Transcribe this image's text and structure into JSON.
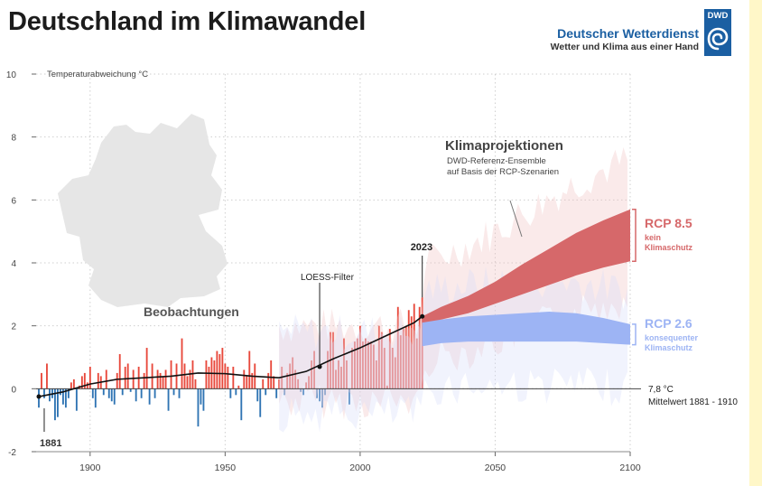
{
  "header": {
    "title": "Deutschland im Klimawandel",
    "brand_name": "Deutscher Wetterdienst",
    "brand_tagline": "Wetter und Klima aus einer Hand",
    "logo_text": "DWD"
  },
  "colors": {
    "warm": "#e8483b",
    "cold": "#2f74b3",
    "rcp85": "#d6686a",
    "rcp26": "#9db4f4",
    "accent_strip": "#fff7c8"
  },
  "chart_data": {
    "type": "bar",
    "ylabel": "Temperaturabweichung °C",
    "xlim": [
      1880,
      2100
    ],
    "ylim": [
      -2,
      10
    ],
    "xticks": [
      1900,
      1950,
      2000,
      2050,
      2100
    ],
    "yticks": [
      -2,
      0,
      2,
      4,
      6,
      8,
      10
    ],
    "grid": true,
    "observations": {
      "name": "Beobachtungen",
      "years": [
        1881,
        1882,
        1883,
        1884,
        1885,
        1886,
        1887,
        1888,
        1889,
        1890,
        1891,
        1892,
        1893,
        1894,
        1895,
        1896,
        1897,
        1898,
        1899,
        1900,
        1901,
        1902,
        1903,
        1904,
        1905,
        1906,
        1907,
        1908,
        1909,
        1910,
        1911,
        1912,
        1913,
        1914,
        1915,
        1916,
        1917,
        1918,
        1919,
        1920,
        1921,
        1922,
        1923,
        1924,
        1925,
        1926,
        1927,
        1928,
        1929,
        1930,
        1931,
        1932,
        1933,
        1934,
        1935,
        1936,
        1937,
        1938,
        1939,
        1940,
        1941,
        1942,
        1943,
        1944,
        1945,
        1946,
        1947,
        1948,
        1949,
        1950,
        1951,
        1952,
        1953,
        1954,
        1955,
        1956,
        1957,
        1958,
        1959,
        1960,
        1961,
        1962,
        1963,
        1964,
        1965,
        1966,
        1967,
        1968,
        1969,
        1970,
        1971,
        1972,
        1973,
        1974,
        1975,
        1976,
        1977,
        1978,
        1979,
        1980,
        1981,
        1982,
        1983,
        1984,
        1985,
        1986,
        1987,
        1988,
        1989,
        1990,
        1991,
        1992,
        1993,
        1994,
        1995,
        1996,
        1997,
        1998,
        1999,
        2000,
        2001,
        2002,
        2003,
        2004,
        2005,
        2006,
        2007,
        2008,
        2009,
        2010,
        2011,
        2012,
        2013,
        2014,
        2015,
        2016,
        2017,
        2018,
        2019,
        2020,
        2021,
        2022,
        2023
      ],
      "values": [
        -0.6,
        0.5,
        -0.3,
        0.8,
        -0.4,
        -0.3,
        -1.0,
        -0.9,
        -0.2,
        -0.5,
        -0.6,
        -0.3,
        0.2,
        0.3,
        -0.7,
        0.1,
        0.4,
        0.5,
        0.2,
        0.7,
        -0.3,
        -0.6,
        0.5,
        0.4,
        -0.2,
        0.6,
        -0.3,
        -0.4,
        -0.5,
        0.5,
        1.1,
        -0.2,
        0.7,
        0.8,
        -0.1,
        0.6,
        -0.4,
        0.7,
        -0.3,
        0.5,
        1.3,
        -0.5,
        0.8,
        -0.3,
        0.6,
        0.5,
        0.4,
        0.6,
        -0.7,
        0.9,
        -0.2,
        0.8,
        -0.3,
        1.6,
        0.8,
        0.4,
        0.6,
        0.9,
        0.3,
        -1.2,
        -0.5,
        -0.7,
        0.9,
        0.7,
        1.0,
        0.9,
        1.2,
        1.1,
        1.3,
        0.8,
        0.7,
        -0.3,
        0.7,
        -0.2,
        0.1,
        -1.0,
        0.6,
        0.4,
        1.2,
        0.5,
        0.8,
        -0.4,
        -0.9,
        0.3,
        -0.2,
        0.5,
        0.9,
        0.4,
        -0.3,
        0.3,
        0.7,
        -0.2,
        0.5,
        0.8,
        1.0,
        0.6,
        0.3,
        -0.1,
        -0.2,
        0.2,
        0.4,
        0.9,
        1.2,
        -0.3,
        -0.4,
        -0.6,
        -0.2,
        1.2,
        1.8,
        1.8,
        0.6,
        0.9,
        0.7,
        1.6,
        0.9,
        -0.5,
        1.3,
        1.5,
        1.6,
        2.0,
        1.5,
        1.6,
        1.5,
        1.5,
        1.4,
        0.9,
        2.0,
        1.8,
        1.3,
        0.1,
        1.9,
        1.3,
        1.0,
        2.6,
        1.7,
        1.9,
        2.0,
        2.5,
        2.3,
        2.7,
        1.6,
        2.6,
        2.9
      ]
    },
    "loess": {
      "name": "LOESS-Filter",
      "x": [
        1881,
        1890,
        1900,
        1910,
        1920,
        1930,
        1940,
        1950,
        1960,
        1970,
        1980,
        1990,
        2000,
        2010,
        2020,
        2023
      ],
      "y": [
        -0.25,
        -0.1,
        0.15,
        0.3,
        0.35,
        0.4,
        0.5,
        0.48,
        0.4,
        0.35,
        0.55,
        0.95,
        1.3,
        1.7,
        2.1,
        2.3
      ]
    },
    "rcp85": {
      "name": "RCP 8.5",
      "label_sub": [
        "kein",
        "Klimaschutz"
      ],
      "x": [
        2023,
        2030,
        2040,
        2050,
        2060,
        2070,
        2080,
        2090,
        2100
      ],
      "lower": [
        2.1,
        2.2,
        2.4,
        2.7,
        3.0,
        3.3,
        3.6,
        3.85,
        4.05
      ],
      "upper": [
        2.3,
        2.6,
        2.95,
        3.4,
        3.95,
        4.45,
        4.95,
        5.35,
        5.7
      ]
    },
    "rcp26": {
      "name": "RCP 2.6",
      "label_sub": [
        "konsequenter",
        "Klimaschutz"
      ],
      "x": [
        2023,
        2030,
        2040,
        2050,
        2060,
        2070,
        2080,
        2090,
        2100
      ],
      "lower": [
        1.35,
        1.45,
        1.5,
        1.5,
        1.5,
        1.5,
        1.5,
        1.45,
        1.4
      ],
      "upper": [
        2.15,
        2.2,
        2.3,
        2.35,
        2.4,
        2.45,
        2.4,
        2.25,
        2.05
      ]
    },
    "annotations": {
      "projection_title": "Klimaprojektionen",
      "projection_sub": [
        "DWD-Referenz-Ensemble",
        "auf Basis der RCP-Szenarien"
      ],
      "year_start": "1881",
      "year_end": "2023",
      "baseline_value": "7,8 °C",
      "baseline_label": "Mittelwert 1881 - 1910"
    }
  }
}
